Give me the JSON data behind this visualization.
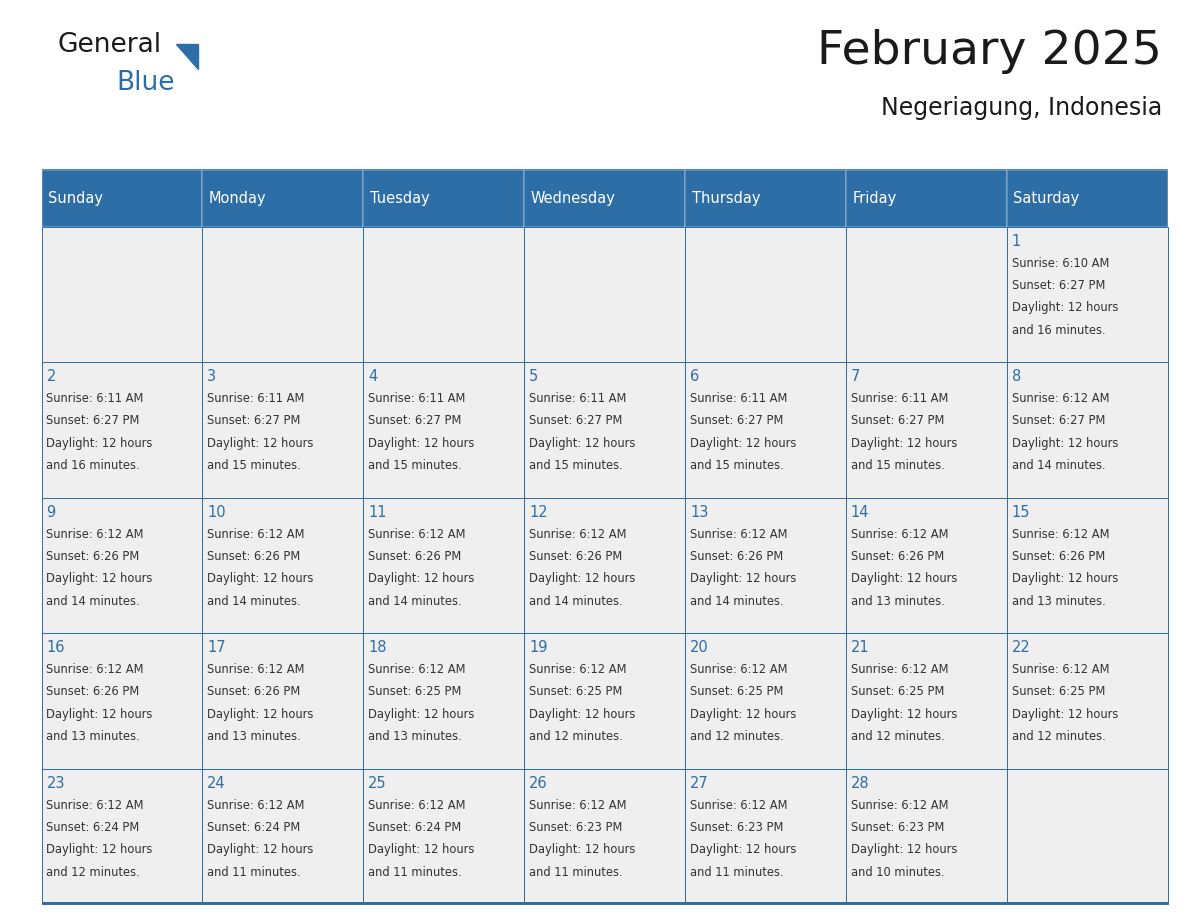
{
  "title": "February 2025",
  "subtitle": "Negeriagung, Indonesia",
  "header_bg_color": "#2E6EA6",
  "header_text_color": "#FFFFFF",
  "cell_bg_color": "#EFEFEF",
  "border_color": "#2E6EA6",
  "days_of_week": [
    "Sunday",
    "Monday",
    "Tuesday",
    "Wednesday",
    "Thursday",
    "Friday",
    "Saturday"
  ],
  "title_color": "#1a1a1a",
  "subtitle_color": "#1a1a1a",
  "day_text_color": "#2E6EA6",
  "info_text_color": "#333333",
  "calendar_data": [
    [
      null,
      null,
      null,
      null,
      null,
      null,
      {
        "day": "1",
        "sunrise": "Sunrise: 6:10 AM",
        "sunset": "Sunset: 6:27 PM",
        "daylight": "Daylight: 12 hours",
        "daylight2": "and 16 minutes."
      }
    ],
    [
      {
        "day": "2",
        "sunrise": "Sunrise: 6:11 AM",
        "sunset": "Sunset: 6:27 PM",
        "daylight": "Daylight: 12 hours",
        "daylight2": "and 16 minutes."
      },
      {
        "day": "3",
        "sunrise": "Sunrise: 6:11 AM",
        "sunset": "Sunset: 6:27 PM",
        "daylight": "Daylight: 12 hours",
        "daylight2": "and 15 minutes."
      },
      {
        "day": "4",
        "sunrise": "Sunrise: 6:11 AM",
        "sunset": "Sunset: 6:27 PM",
        "daylight": "Daylight: 12 hours",
        "daylight2": "and 15 minutes."
      },
      {
        "day": "5",
        "sunrise": "Sunrise: 6:11 AM",
        "sunset": "Sunset: 6:27 PM",
        "daylight": "Daylight: 12 hours",
        "daylight2": "and 15 minutes."
      },
      {
        "day": "6",
        "sunrise": "Sunrise: 6:11 AM",
        "sunset": "Sunset: 6:27 PM",
        "daylight": "Daylight: 12 hours",
        "daylight2": "and 15 minutes."
      },
      {
        "day": "7",
        "sunrise": "Sunrise: 6:11 AM",
        "sunset": "Sunset: 6:27 PM",
        "daylight": "Daylight: 12 hours",
        "daylight2": "and 15 minutes."
      },
      {
        "day": "8",
        "sunrise": "Sunrise: 6:12 AM",
        "sunset": "Sunset: 6:27 PM",
        "daylight": "Daylight: 12 hours",
        "daylight2": "and 14 minutes."
      }
    ],
    [
      {
        "day": "9",
        "sunrise": "Sunrise: 6:12 AM",
        "sunset": "Sunset: 6:26 PM",
        "daylight": "Daylight: 12 hours",
        "daylight2": "and 14 minutes."
      },
      {
        "day": "10",
        "sunrise": "Sunrise: 6:12 AM",
        "sunset": "Sunset: 6:26 PM",
        "daylight": "Daylight: 12 hours",
        "daylight2": "and 14 minutes."
      },
      {
        "day": "11",
        "sunrise": "Sunrise: 6:12 AM",
        "sunset": "Sunset: 6:26 PM",
        "daylight": "Daylight: 12 hours",
        "daylight2": "and 14 minutes."
      },
      {
        "day": "12",
        "sunrise": "Sunrise: 6:12 AM",
        "sunset": "Sunset: 6:26 PM",
        "daylight": "Daylight: 12 hours",
        "daylight2": "and 14 minutes."
      },
      {
        "day": "13",
        "sunrise": "Sunrise: 6:12 AM",
        "sunset": "Sunset: 6:26 PM",
        "daylight": "Daylight: 12 hours",
        "daylight2": "and 14 minutes."
      },
      {
        "day": "14",
        "sunrise": "Sunrise: 6:12 AM",
        "sunset": "Sunset: 6:26 PM",
        "daylight": "Daylight: 12 hours",
        "daylight2": "and 13 minutes."
      },
      {
        "day": "15",
        "sunrise": "Sunrise: 6:12 AM",
        "sunset": "Sunset: 6:26 PM",
        "daylight": "Daylight: 12 hours",
        "daylight2": "and 13 minutes."
      }
    ],
    [
      {
        "day": "16",
        "sunrise": "Sunrise: 6:12 AM",
        "sunset": "Sunset: 6:26 PM",
        "daylight": "Daylight: 12 hours",
        "daylight2": "and 13 minutes."
      },
      {
        "day": "17",
        "sunrise": "Sunrise: 6:12 AM",
        "sunset": "Sunset: 6:26 PM",
        "daylight": "Daylight: 12 hours",
        "daylight2": "and 13 minutes."
      },
      {
        "day": "18",
        "sunrise": "Sunrise: 6:12 AM",
        "sunset": "Sunset: 6:25 PM",
        "daylight": "Daylight: 12 hours",
        "daylight2": "and 13 minutes."
      },
      {
        "day": "19",
        "sunrise": "Sunrise: 6:12 AM",
        "sunset": "Sunset: 6:25 PM",
        "daylight": "Daylight: 12 hours",
        "daylight2": "and 12 minutes."
      },
      {
        "day": "20",
        "sunrise": "Sunrise: 6:12 AM",
        "sunset": "Sunset: 6:25 PM",
        "daylight": "Daylight: 12 hours",
        "daylight2": "and 12 minutes."
      },
      {
        "day": "21",
        "sunrise": "Sunrise: 6:12 AM",
        "sunset": "Sunset: 6:25 PM",
        "daylight": "Daylight: 12 hours",
        "daylight2": "and 12 minutes."
      },
      {
        "day": "22",
        "sunrise": "Sunrise: 6:12 AM",
        "sunset": "Sunset: 6:25 PM",
        "daylight": "Daylight: 12 hours",
        "daylight2": "and 12 minutes."
      }
    ],
    [
      {
        "day": "23",
        "sunrise": "Sunrise: 6:12 AM",
        "sunset": "Sunset: 6:24 PM",
        "daylight": "Daylight: 12 hours",
        "daylight2": "and 12 minutes."
      },
      {
        "day": "24",
        "sunrise": "Sunrise: 6:12 AM",
        "sunset": "Sunset: 6:24 PM",
        "daylight": "Daylight: 12 hours",
        "daylight2": "and 11 minutes."
      },
      {
        "day": "25",
        "sunrise": "Sunrise: 6:12 AM",
        "sunset": "Sunset: 6:24 PM",
        "daylight": "Daylight: 12 hours",
        "daylight2": "and 11 minutes."
      },
      {
        "day": "26",
        "sunrise": "Sunrise: 6:12 AM",
        "sunset": "Sunset: 6:23 PM",
        "daylight": "Daylight: 12 hours",
        "daylight2": "and 11 minutes."
      },
      {
        "day": "27",
        "sunrise": "Sunrise: 6:12 AM",
        "sunset": "Sunset: 6:23 PM",
        "daylight": "Daylight: 12 hours",
        "daylight2": "and 11 minutes."
      },
      {
        "day": "28",
        "sunrise": "Sunrise: 6:12 AM",
        "sunset": "Sunset: 6:23 PM",
        "daylight": "Daylight: 12 hours",
        "daylight2": "and 10 minutes."
      },
      null
    ]
  ]
}
